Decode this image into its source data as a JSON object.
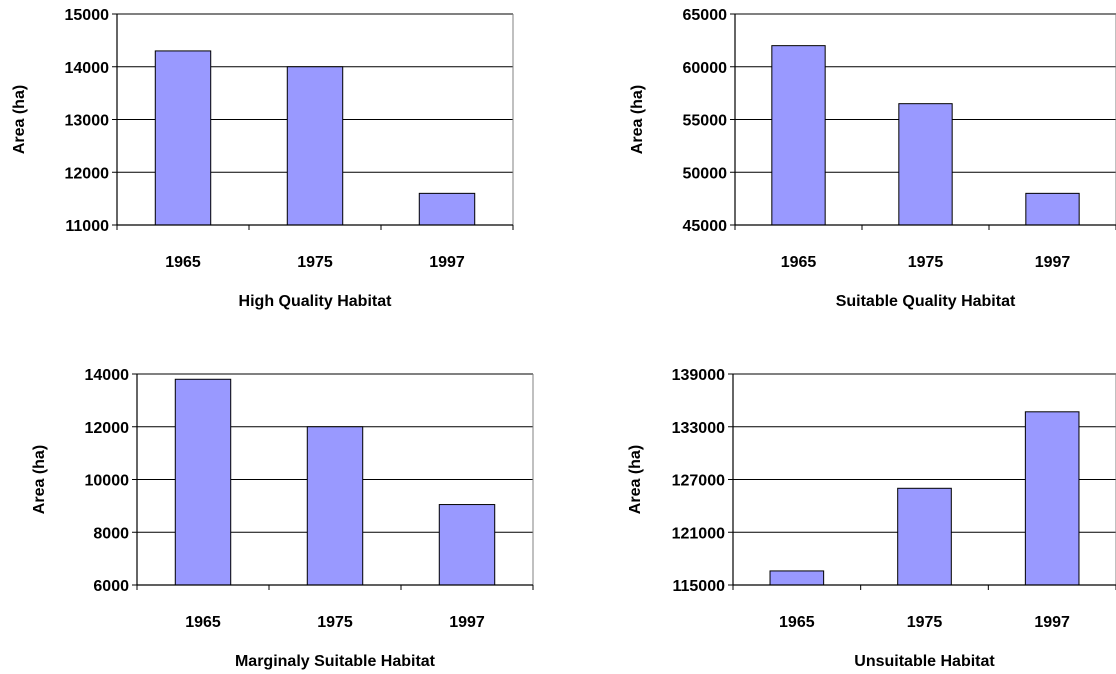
{
  "chart_data": [
    {
      "type": "bar",
      "categories": [
        "1965",
        "1975",
        "1997"
      ],
      "values": [
        14300,
        14000,
        11600
      ],
      "title": "",
      "xlabel": "High Quality Habitat",
      "ylabel": "Area (ha)",
      "ylim": [
        11000,
        15000
      ],
      "yticks": [
        "11000",
        "12000",
        "13000",
        "14000",
        "15000"
      ],
      "grid": true,
      "bar_color": "#9999ff"
    },
    {
      "type": "bar",
      "categories": [
        "1965",
        "1975",
        "1997"
      ],
      "values": [
        62000,
        56500,
        48000
      ],
      "title": "",
      "xlabel": "Suitable Quality Habitat",
      "ylabel": "Area (ha)",
      "ylim": [
        45000,
        65000
      ],
      "yticks": [
        "45000",
        "50000",
        "55000",
        "60000",
        "65000"
      ],
      "grid": true,
      "bar_color": "#9999ff"
    },
    {
      "type": "bar",
      "categories": [
        "1965",
        "1975",
        "1997"
      ],
      "values": [
        13800,
        12000,
        9050
      ],
      "title": "",
      "xlabel": "Marginaly Suitable Habitat",
      "ylabel": "Area (ha)",
      "ylim": [
        6000,
        14000
      ],
      "yticks": [
        "6000",
        "8000",
        "10000",
        "12000",
        "14000"
      ],
      "grid": true,
      "bar_color": "#9999ff"
    },
    {
      "type": "bar",
      "categories": [
        "1965",
        "1975",
        "1997"
      ],
      "values": [
        116600,
        126000,
        134700
      ],
      "title": "",
      "xlabel": "Unsuitable Habitat",
      "ylabel": "Area (ha)",
      "ylim": [
        115000,
        139000
      ],
      "yticks": [
        "115000",
        "121000",
        "127000",
        "133000",
        "139000"
      ],
      "grid": true,
      "bar_color": "#9999ff"
    }
  ]
}
